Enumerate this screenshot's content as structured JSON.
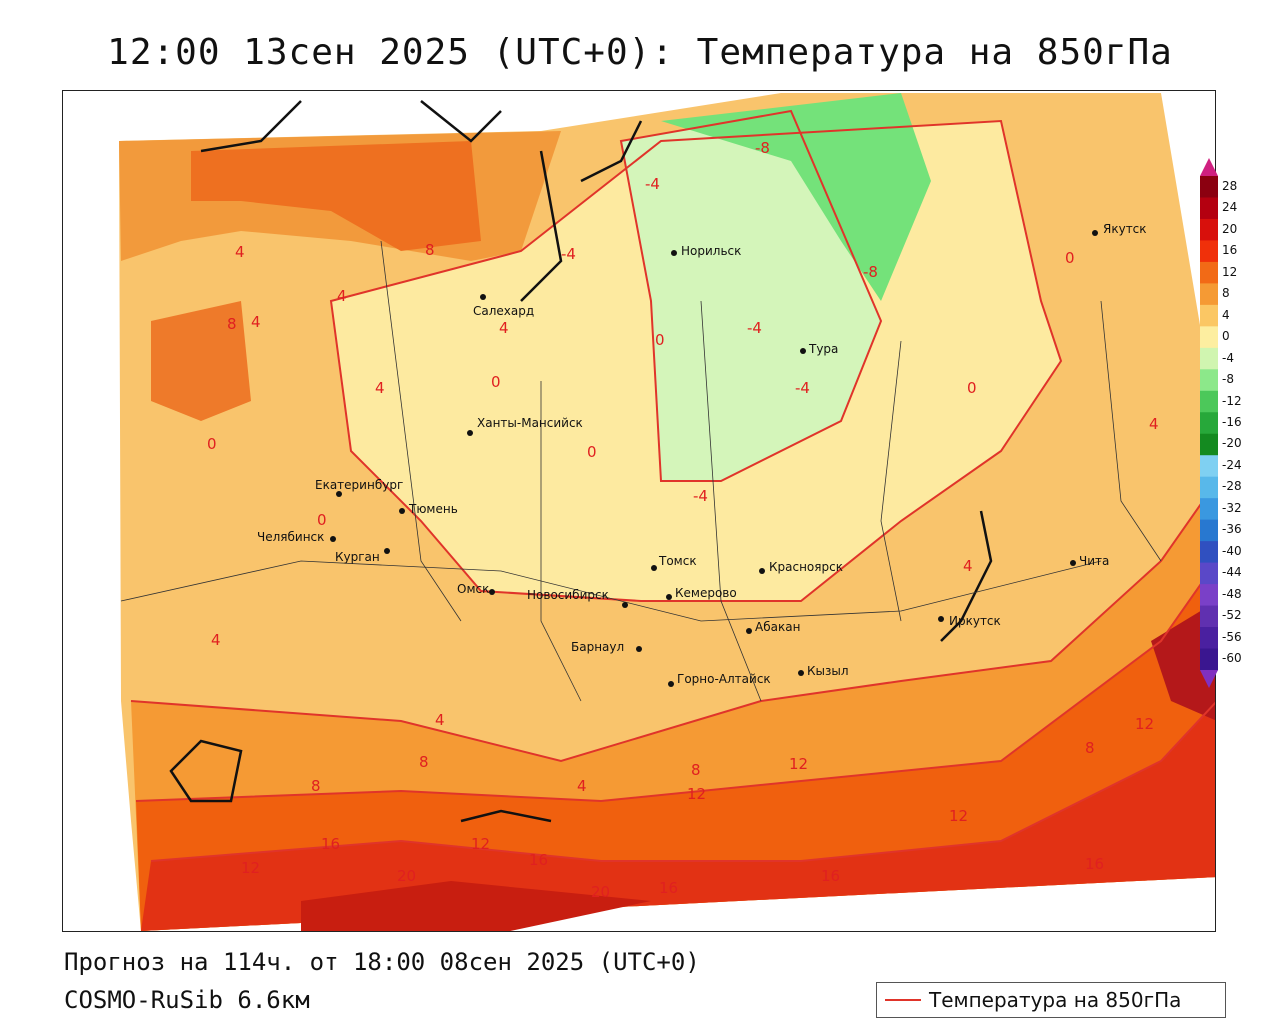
{
  "title": "12:00 13сен 2025 (UTC+0): Температура на 850гПа",
  "footer": {
    "forecast": "Прогноз на 114ч. от 18:00 08сен 2025 (UTC+0)",
    "model": "COSMO-RuSib 6.6км"
  },
  "legend": {
    "label": "Температура на 850гПа",
    "line_color": "#e0342a"
  },
  "colorbar": {
    "ticks": [
      "28",
      "24",
      "20",
      "16",
      "12",
      "8",
      "4",
      "0",
      "-4",
      "-8",
      "-12",
      "-16",
      "-20",
      "-24",
      "-28",
      "-32",
      "-36",
      "-40",
      "-44",
      "-48",
      "-52",
      "-56",
      "-60"
    ],
    "colors": [
      "#8b0010",
      "#b40010",
      "#d8100c",
      "#f0300a",
      "#f26a16",
      "#f59a34",
      "#fbc764",
      "#fdeea0",
      "#d0f5b0",
      "#8ce88a",
      "#4cc85a",
      "#27a83a",
      "#148a20",
      "#7fd0f2",
      "#58b8ea",
      "#3a98e0",
      "#2878d0",
      "#3050c0",
      "#5a48c8",
      "#7a40c8",
      "#6030b0",
      "#4a20a0",
      "#3a1690"
    ]
  },
  "cities": [
    {
      "name": "Салехард"
    },
    {
      "name": "Норильск"
    },
    {
      "name": "Якутск"
    },
    {
      "name": "Тура"
    },
    {
      "name": "Ханты-Мансийск"
    },
    {
      "name": "Екатеринбург"
    },
    {
      "name": "Тюмень"
    },
    {
      "name": "Челябинск"
    },
    {
      "name": "Курган"
    },
    {
      "name": "Омск"
    },
    {
      "name": "Новосибирск"
    },
    {
      "name": "Томск"
    },
    {
      "name": "Кемерово"
    },
    {
      "name": "Красноярск"
    },
    {
      "name": "Барнаул"
    },
    {
      "name": "Абакан"
    },
    {
      "name": "Иркутск"
    },
    {
      "name": "Чита"
    },
    {
      "name": "Горно-Алтайск"
    },
    {
      "name": "Кызыл"
    }
  ],
  "isoline_labels": [
    "-8",
    "-4",
    "-4",
    "-4",
    "-8",
    "-4",
    "-4",
    "0",
    "0",
    "0",
    "0",
    "0",
    "0",
    "0",
    "4",
    "4",
    "4",
    "4",
    "4",
    "4",
    "4",
    "4",
    "4",
    "4",
    "8",
    "8",
    "8",
    "8",
    "8",
    "8",
    "12",
    "12",
    "12",
    "12",
    "12",
    "12",
    "16",
    "16",
    "16",
    "16",
    "16",
    "20",
    "20"
  ]
}
